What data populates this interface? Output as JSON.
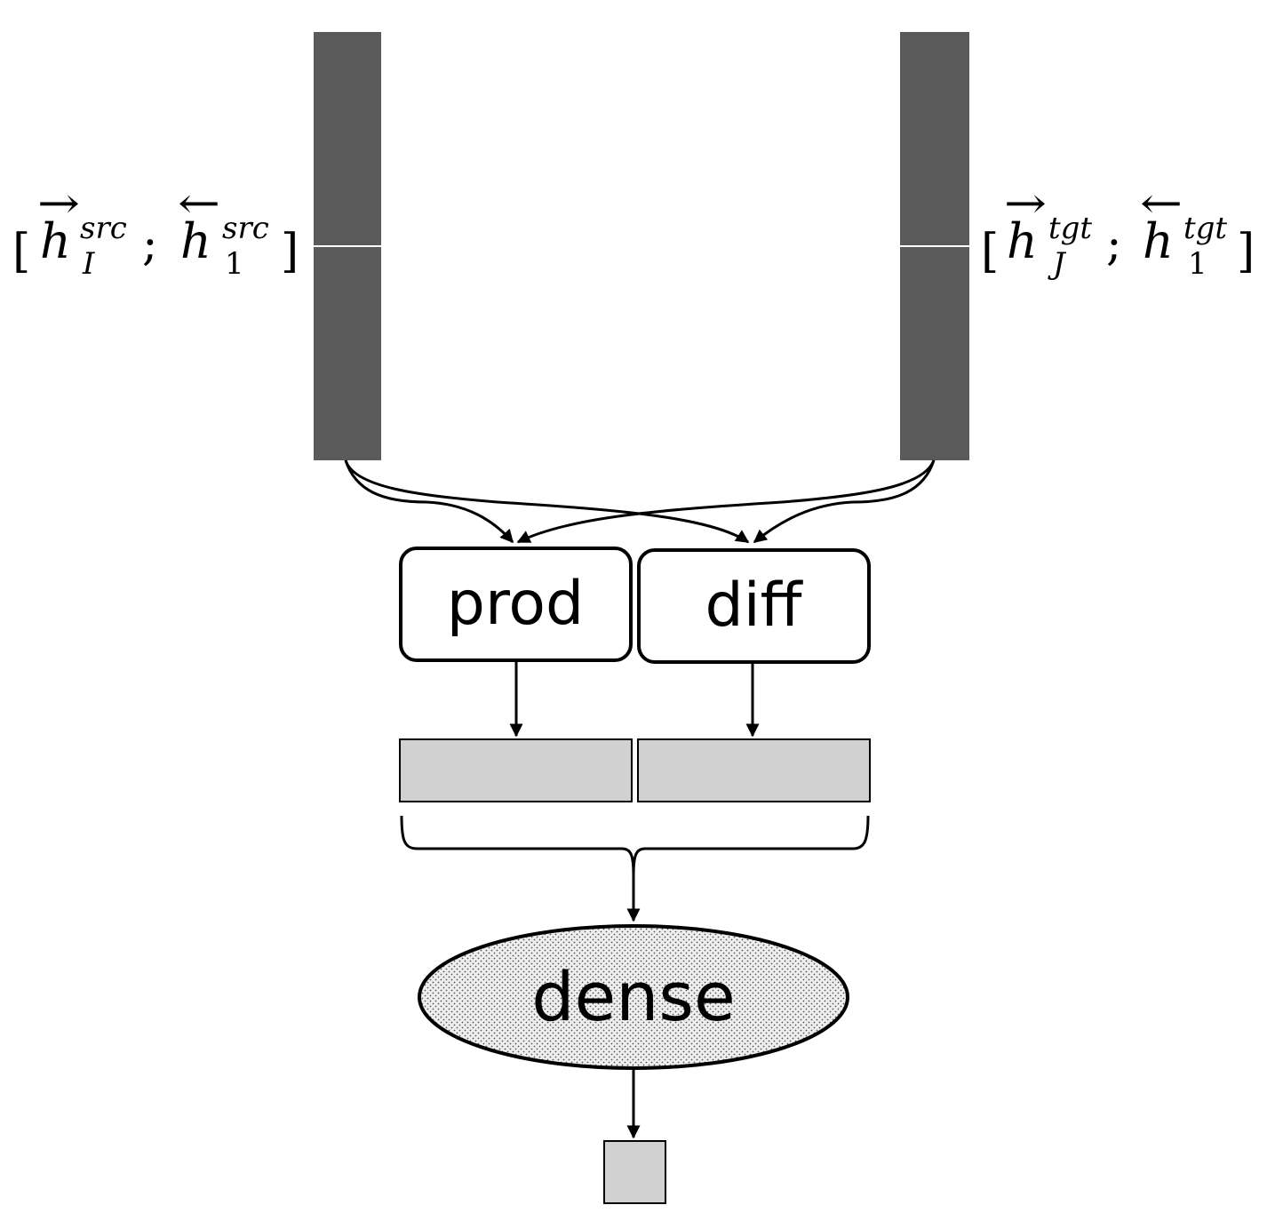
{
  "source_vector": {
    "label": {
      "open": "[",
      "arrow_fwd": "→",
      "arrow_bwd": "←",
      "letter": "h",
      "sup": "src",
      "sub_fwd": "I",
      "sub_bwd": "1",
      "sep": ";",
      "close": "]"
    }
  },
  "target_vector": {
    "label": {
      "open": "[",
      "arrow_fwd": "→",
      "arrow_bwd": "←",
      "letter": "h",
      "sup": "tgt",
      "sub_fwd": "J",
      "sub_bwd": "1",
      "sep": ";",
      "close": "]"
    }
  },
  "operations": {
    "prod": "prod",
    "diff": "diff"
  },
  "dense": "dense",
  "colors": {
    "encoder_vector": "#5a5a5a",
    "feature_vector": "#d1d1d1",
    "output": "#d1d1d1",
    "stroke": "#000000"
  }
}
